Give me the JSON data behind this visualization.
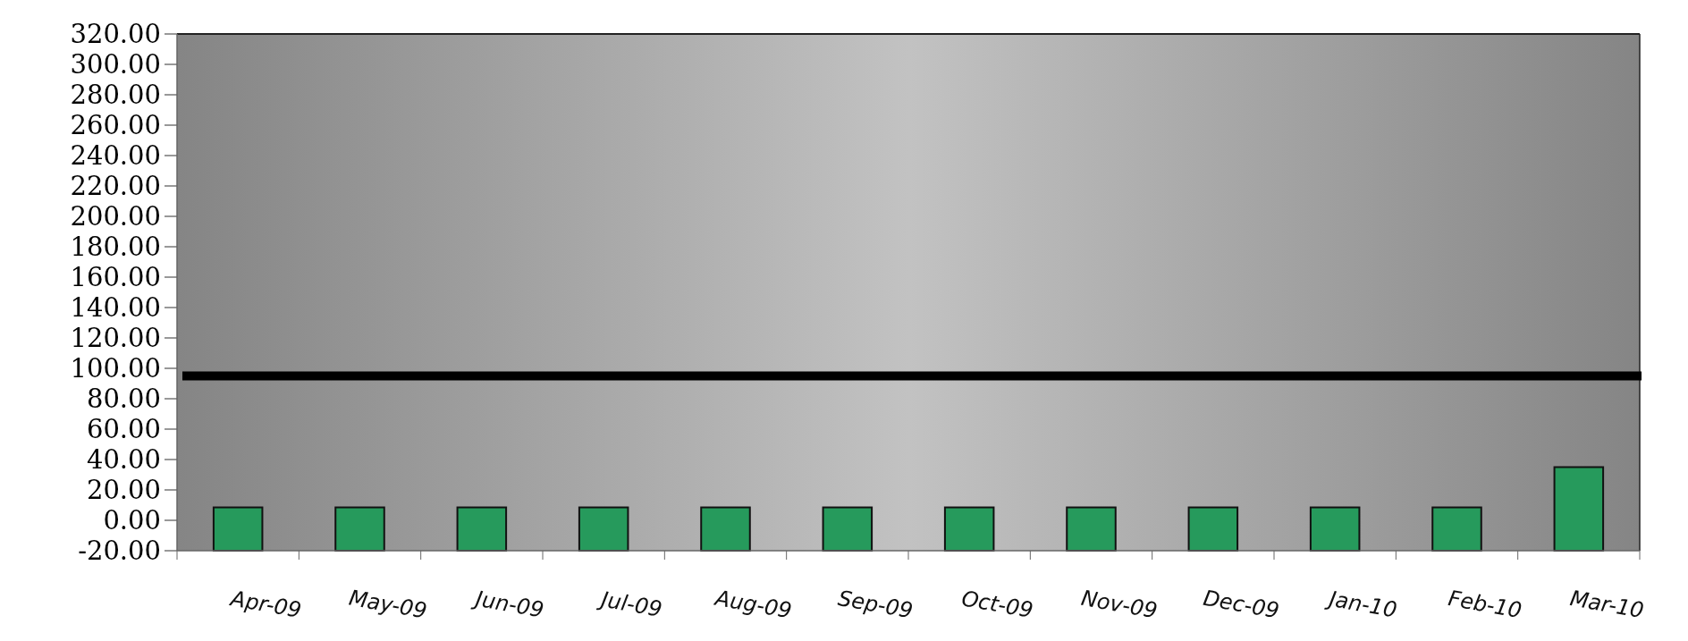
{
  "chart_data": {
    "type": "bar",
    "categories": [
      "Apr-09",
      "May-09",
      "Jun-09",
      "Jul-09",
      "Aug-09",
      "Sep-09",
      "Oct-09",
      "Nov-09",
      "Dec-09",
      "Jan-10",
      "Feb-10",
      "Mar-10"
    ],
    "base": [
      -20,
      -20,
      -20,
      -20,
      -20,
      -20,
      -20,
      -20,
      -20,
      -20,
      -20,
      -20
    ],
    "values": [
      28.5,
      28.5,
      28.5,
      28.5,
      28.5,
      28.5,
      28.5,
      28.5,
      28.5,
      28.5,
      28.5,
      55
    ],
    "color": "#269a5c",
    "ylim": [
      -20,
      320
    ],
    "yticks": [
      {
        "value": -20,
        "label": "-20.00"
      },
      {
        "value": 0,
        "label": "0.00"
      },
      {
        "value": 20,
        "label": "20.00"
      },
      {
        "value": 40,
        "label": "40.00"
      },
      {
        "value": 60,
        "label": "60.00"
      },
      {
        "value": 80,
        "label": "80.00"
      },
      {
        "value": 100,
        "label": "100.00"
      },
      {
        "value": 120,
        "label": "120.00"
      },
      {
        "value": 140,
        "label": "140.00"
      },
      {
        "value": 160,
        "label": "160.00"
      },
      {
        "value": 180,
        "label": "180.00"
      },
      {
        "value": 200,
        "label": "200.00"
      },
      {
        "value": 220,
        "label": "220.00"
      },
      {
        "value": 240,
        "label": "240.00"
      },
      {
        "value": 260,
        "label": "260.00"
      },
      {
        "value": 280,
        "label": "280.00"
      },
      {
        "value": 300,
        "label": "300.00"
      },
      {
        "value": 320,
        "label": "320.00"
      }
    ],
    "ref_lines": [
      {
        "axis": "y",
        "value": 95,
        "color": "#000000"
      }
    ]
  }
}
